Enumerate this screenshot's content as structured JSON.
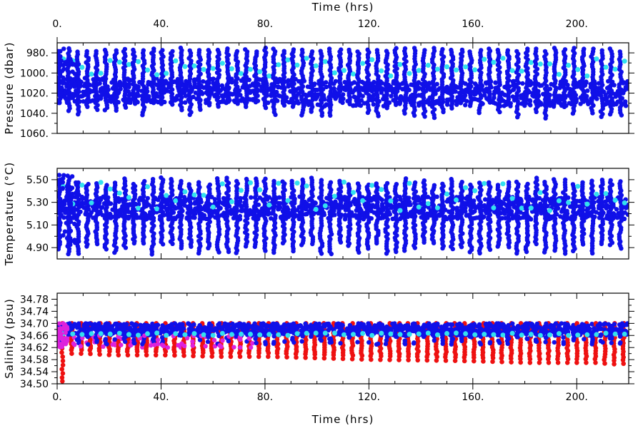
{
  "figure": {
    "top_xlabel": "Time (hrs)",
    "bottom_xlabel": "Time (hrs)"
  },
  "colors": {
    "main_series": "#1010e8",
    "means": "#33e0f0",
    "salinity_low": "#ee1111",
    "salinity_other": "#dd22dd",
    "frame": "#000000"
  },
  "chart_data": [
    {
      "type": "scatter",
      "ylabel": "Pressure (dbar)",
      "xlim": [
        0,
        220
      ],
      "ylim": [
        1060,
        970
      ],
      "y_inverted": true,
      "x_ticks": [
        0,
        40,
        80,
        120,
        160,
        200
      ],
      "x_tick_labels": [
        "0.",
        "40.",
        "80.",
        "120.",
        "160.",
        "200."
      ],
      "y_ticks": [
        980,
        1000,
        1020,
        1040,
        1060
      ],
      "y_tick_labels": [
        "980.",
        "1000.",
        "1020.",
        "1040.",
        "1060."
      ],
      "cycle_period_hrs": 3.6,
      "series": [
        {
          "color": "#1010e8",
          "profile_top": 975,
          "profile_bottom_range": [
            1028,
            1045
          ],
          "band": [
            1005,
            1030
          ]
        },
        {
          "color": "#33e0f0",
          "mean_values_range": [
            985,
            1003
          ]
        }
      ]
    },
    {
      "type": "scatter",
      "ylabel": "Temperature (°C)",
      "xlim": [
        0,
        220
      ],
      "ylim": [
        4.8,
        5.6
      ],
      "x_ticks": [
        0,
        40,
        80,
        120,
        160,
        200
      ],
      "x_tick_labels": [
        "0.",
        "40.",
        "80.",
        "120.",
        "160.",
        "200."
      ],
      "y_ticks": [
        4.9,
        5.1,
        5.3,
        5.5
      ],
      "y_tick_labels": [
        "4.90",
        "5.10",
        "5.30",
        "5.50"
      ],
      "cycle_period_hrs": 3.6,
      "series": [
        {
          "color": "#1010e8",
          "profile_top_range": [
            5.45,
            5.52
          ],
          "profile_bottom_range": [
            4.84,
            4.95
          ],
          "band": [
            5.15,
            5.35
          ]
        },
        {
          "color": "#33e0f0",
          "mean_values_range": [
            5.22,
            5.48
          ]
        }
      ]
    },
    {
      "type": "scatter",
      "ylabel": "Salinity (psu)",
      "xlim": [
        0,
        220
      ],
      "ylim": [
        34.5,
        34.8
      ],
      "x_ticks": [
        0,
        40,
        80,
        120,
        160,
        200
      ],
      "x_tick_labels": [
        "0.",
        "40.",
        "80.",
        "120.",
        "160.",
        "200."
      ],
      "y_ticks": [
        34.5,
        34.54,
        34.58,
        34.62,
        34.66,
        34.7,
        34.74,
        34.78
      ],
      "y_tick_labels": [
        "34.50",
        "34.54",
        "34.58",
        "34.62",
        "34.66",
        "34.70",
        "34.74",
        "34.78"
      ],
      "cycle_period_hrs": 3.6,
      "series": [
        {
          "color": "#ee1111",
          "profile_top": 34.7,
          "lowest_points": [
            [
              0.5,
              34.5
            ],
            [
              4,
              34.6
            ],
            [
              10,
              34.6
            ],
            [
              20,
              34.595
            ],
            [
              40,
              34.595
            ],
            [
              60,
              34.59
            ],
            [
              80,
              34.59
            ],
            [
              100,
              34.585
            ],
            [
              120,
              34.58
            ],
            [
              140,
              34.578
            ],
            [
              160,
              34.575
            ],
            [
              172,
              34.572
            ],
            [
              180,
              34.57
            ],
            [
              193,
              34.57
            ],
            [
              200,
              34.57
            ],
            [
              206,
              34.57
            ],
            [
              213,
              34.565
            ],
            [
              220,
              34.568
            ]
          ]
        },
        {
          "color": "#1010e8",
          "band": [
            34.66,
            34.7
          ],
          "lowest_range": [
            34.63,
            34.64
          ]
        },
        {
          "color": "#33e0f0",
          "mean_values_range": [
            34.66,
            34.668
          ]
        },
        {
          "color": "#dd22dd",
          "x_range": [
            0,
            75
          ],
          "values_range": [
            34.62,
            34.66
          ]
        }
      ]
    }
  ]
}
